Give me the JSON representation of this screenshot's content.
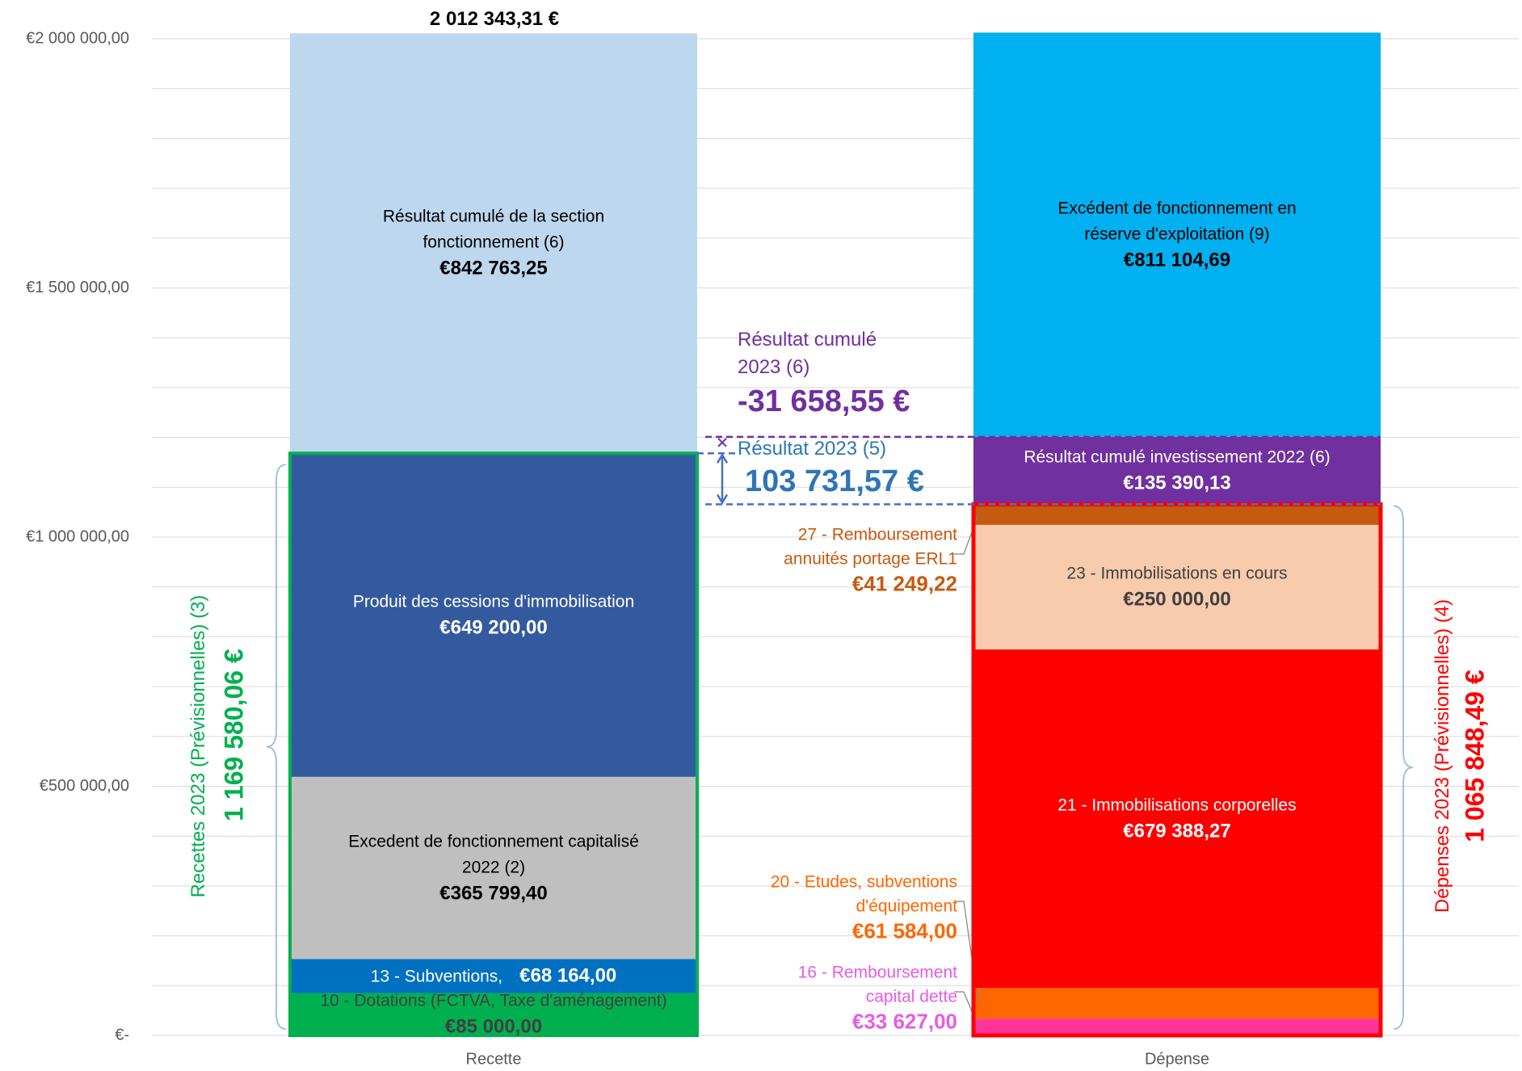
{
  "chart_data": {
    "type": "stacked_bar",
    "categories": [
      "Recette",
      "Dépense"
    ],
    "ylim": [
      0,
      2000000
    ],
    "yticks": [
      {
        "value": 0,
        "label": "€-"
      },
      {
        "value": 500000,
        "label": "€500 000,00"
      },
      {
        "value": 1000000,
        "label": "€1 000 000,00"
      },
      {
        "value": 1500000,
        "label": "€1 500 000,00"
      },
      {
        "value": 2000000,
        "label": "€2 000 000,00"
      }
    ],
    "minor_yticks": [
      100000,
      200000,
      300000,
      400000,
      600000,
      700000,
      800000,
      900000,
      1100000,
      1200000,
      1300000,
      1400000,
      1600000,
      1700000,
      1800000,
      1900000
    ],
    "grid": true,
    "series": [
      {
        "name": "10 - Dotations (FCTVA, Taxe d'aménagement)",
        "color": "#00b050",
        "label_color": "#404040",
        "label_position": "inside",
        "values": [
          85000,
          null
        ],
        "value_labels": [
          "€85 000,00",
          null
        ]
      },
      {
        "name": "13 - Subventions,",
        "color": "#0070c0",
        "label_color": "#ffffff",
        "label_position": "inside",
        "values": [
          68164,
          null
        ],
        "value_labels": [
          "€68 164,00",
          null
        ]
      },
      {
        "name": "Excedent de fonctionnement capitalisé 2022 (2)",
        "color": "#bfbfbf",
        "label_color": "#000000",
        "label_position": "inside",
        "values": [
          365799.4,
          null
        ],
        "value_labels": [
          "€365 799,40",
          null
        ]
      },
      {
        "name": "Produit des cessions d'immobilisation",
        "color": "#335a9e",
        "label_color": "#ffffff",
        "label_position": "inside",
        "values": [
          649200,
          null
        ],
        "value_labels": [
          "€649 200,00",
          null
        ]
      },
      {
        "name": "Résultat cumulé de la section fonctionnement (6)",
        "color": "#bdd7ee",
        "label_color": "#000000",
        "label_position": "inside",
        "values": [
          842763.25,
          null
        ],
        "value_labels": [
          "€842 763,25",
          null
        ]
      },
      {
        "name": "16 - Remboursement capital dette",
        "color": "#ff3399",
        "label_color": "#e65ce6",
        "label_position": "left",
        "values": [
          null,
          33627
        ],
        "value_labels": [
          null,
          "€33 627,00"
        ]
      },
      {
        "name": "20 - Etudes, subventions d'équipement",
        "color": "#ff6600",
        "label_color": "#ff6600",
        "label_position": "left",
        "values": [
          null,
          61584
        ],
        "value_labels": [
          null,
          "€61 584,00"
        ]
      },
      {
        "name": "21 - Immobilisations corporelles",
        "color": "#ff0000",
        "label_color": "#ffffff",
        "label_position": "inside",
        "values": [
          null,
          679388.27
        ],
        "value_labels": [
          null,
          "€679 388,27"
        ]
      },
      {
        "name": "23 - Immobilisations en cours",
        "color": "#f8cbad",
        "label_color": "#404040",
        "label_position": "inside",
        "values": [
          null,
          250000
        ],
        "value_labels": [
          null,
          "€250 000,00"
        ]
      },
      {
        "name": "27 - Remboursement annuités portage ERL1",
        "color": "#c55a11",
        "label_color": "#c55a11",
        "label_position": "left",
        "values": [
          null,
          41249.22
        ],
        "value_labels": [
          null,
          "€41 249,22"
        ]
      },
      {
        "name": "Résultat cumulé investissement 2022 (6)",
        "color": "#7030a0",
        "label_color": "#ffffff",
        "label_position": "inside",
        "values": [
          null,
          135390.13
        ],
        "value_labels": [
          null,
          "€135 390,13"
        ]
      },
      {
        "name": "Excédent de fonctionnement en réserve d'exploitation (9)",
        "color": "#00b0f0",
        "label_color": "#000000",
        "label_position": "inside",
        "values": [
          null,
          811104.69
        ],
        "value_labels": [
          null,
          "€811 104,69"
        ]
      }
    ],
    "annotations": [
      {
        "text": "2 012 343,31 €",
        "color": "#000000"
      },
      {
        "text": "Résultat cumulé 2023 (6)",
        "color": "#7030a0"
      },
      {
        "text": "-31 658,55 €",
        "color": "#7030a0"
      },
      {
        "text": "Résultat 2023 (5)",
        "color": "#2e75b6"
      },
      {
        "text": "103 731,57 €",
        "color": "#2e75b6"
      },
      {
        "text": "Recettes 2023 (Prévisionnelles) (3)",
        "color": "#00b050"
      },
      {
        "text": "1 169 580,06 €",
        "color": "#00b050"
      },
      {
        "text": "Dépenses 2023 (Prévisionnelles) (4)",
        "color": "#ff0000"
      },
      {
        "text": "1 065 848,49 €",
        "color": "#ff0000"
      }
    ]
  }
}
